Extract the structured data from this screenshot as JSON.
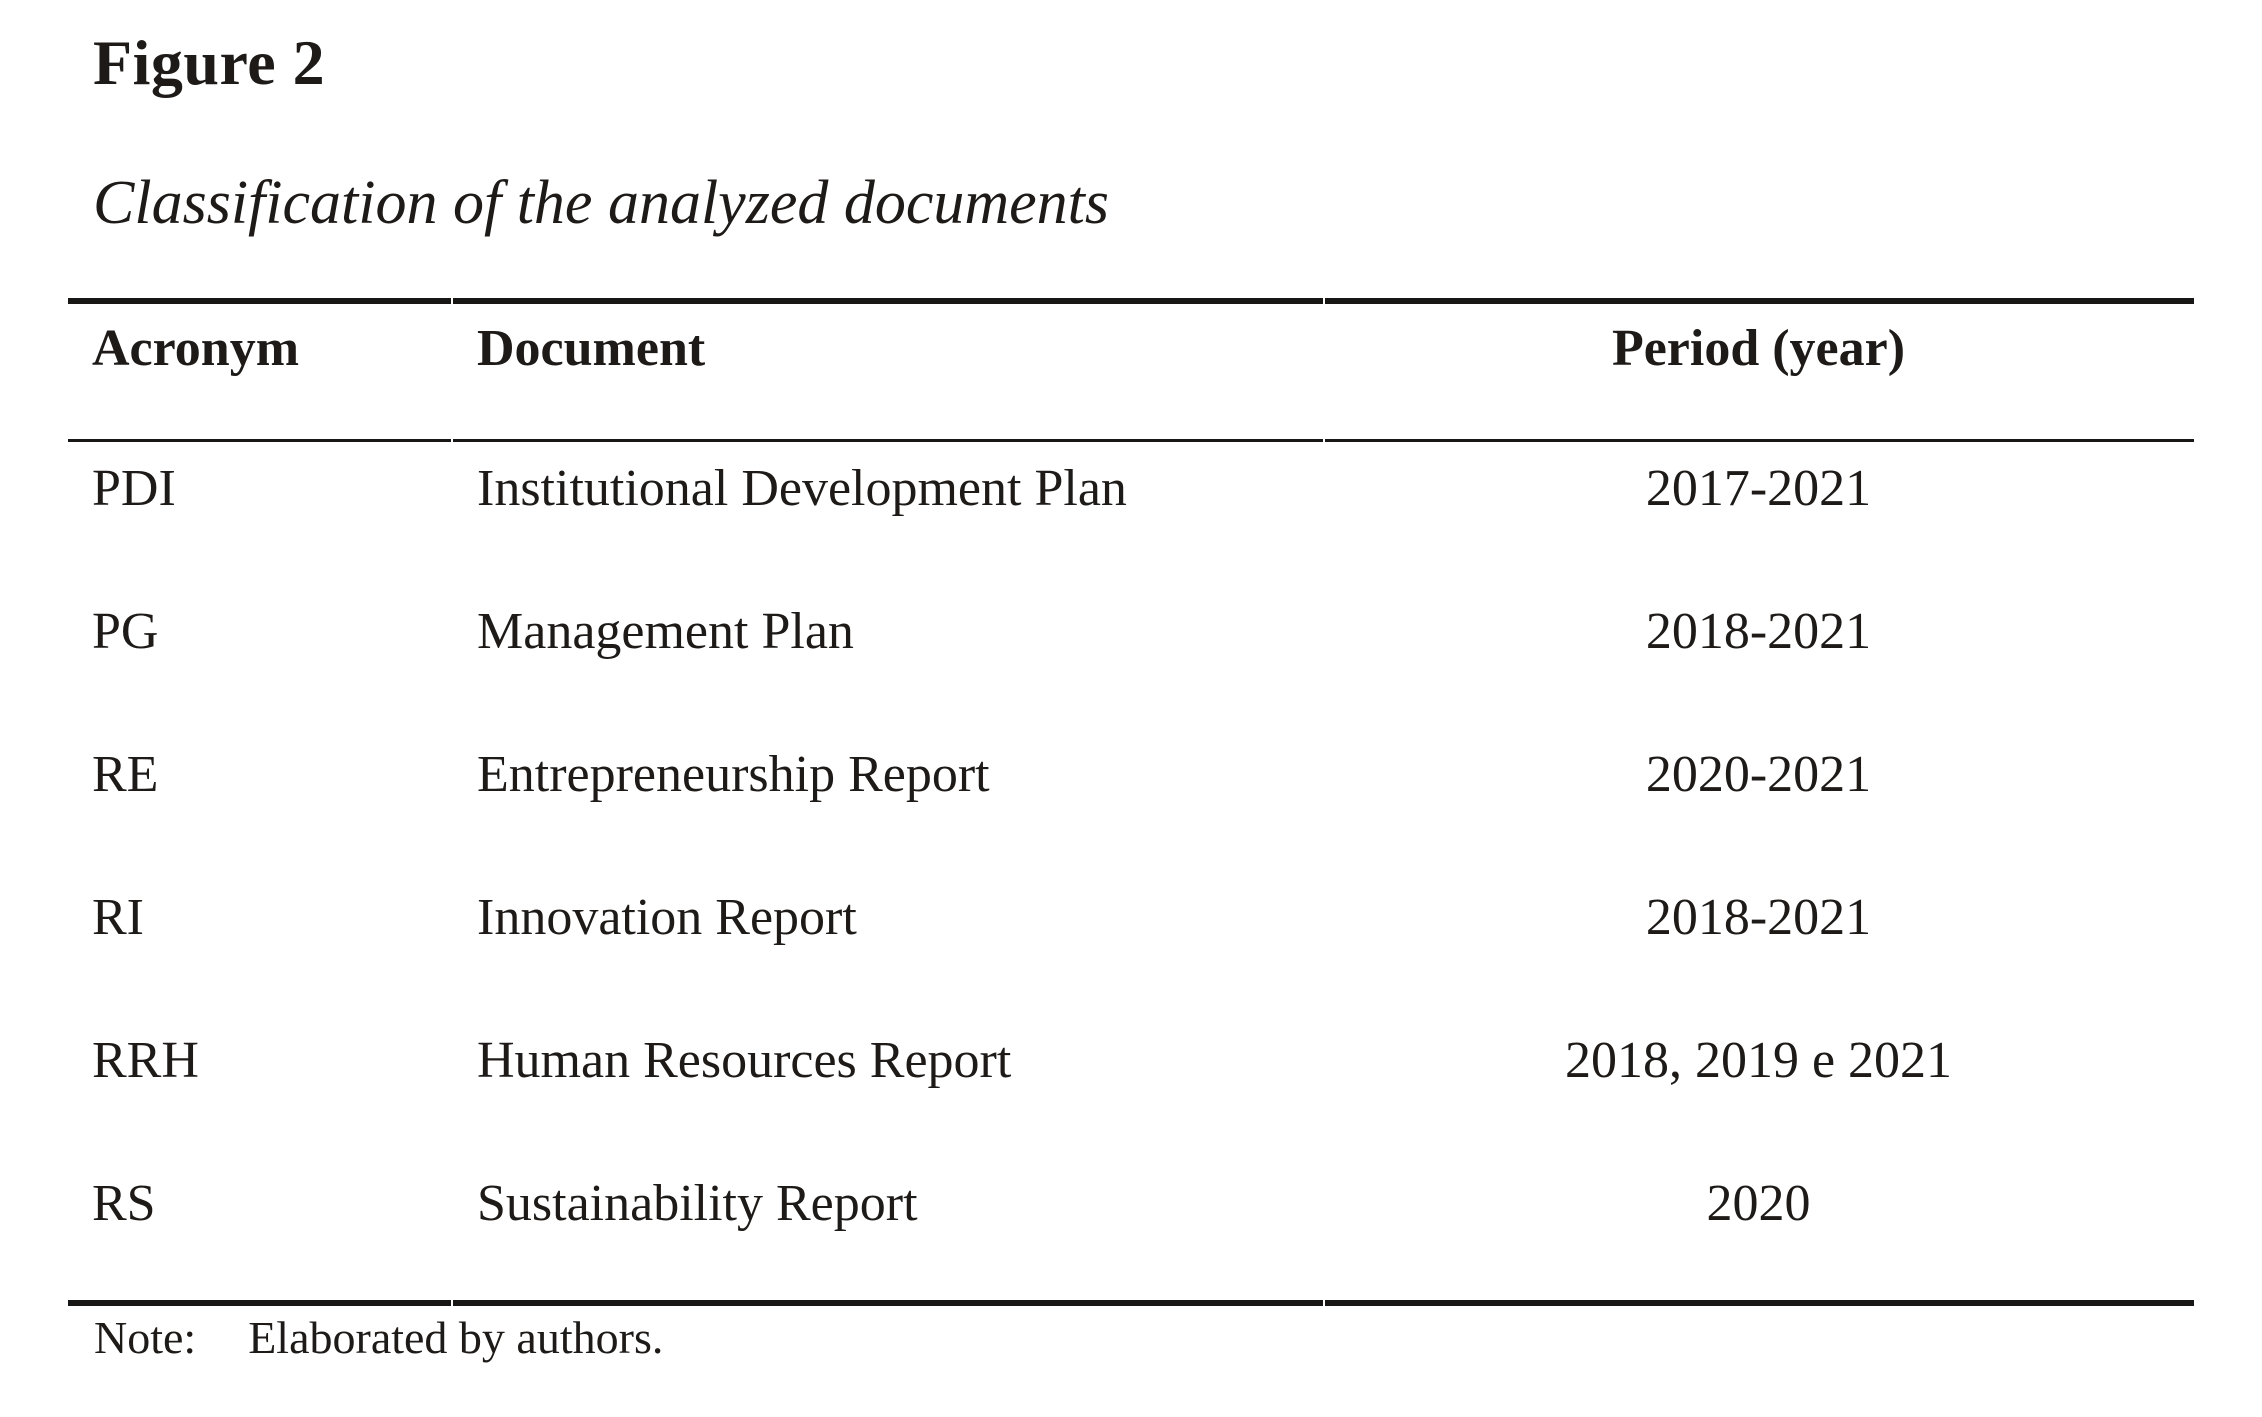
{
  "figure": {
    "label": "Figure 2",
    "caption": "Classification of the analyzed documents"
  },
  "table": {
    "columns": {
      "acronym": "Acronym",
      "document": "Document",
      "period": "Period (year)"
    },
    "rows": [
      {
        "acronym": "PDI",
        "document": "Institutional Development Plan",
        "period": "2017-2021"
      },
      {
        "acronym": "PG",
        "document": "Management Plan",
        "period": "2018-2021"
      },
      {
        "acronym": "RE",
        "document": "Entrepreneurship Report",
        "period": "2020-2021"
      },
      {
        "acronym": "RI",
        "document": "Innovation Report",
        "period": "2018-2021"
      },
      {
        "acronym": "RRH",
        "document": "Human Resources Report",
        "period": "2018, 2019 e 2021"
      },
      {
        "acronym": "RS",
        "document": "Sustainability Report",
        "period": "2020"
      }
    ]
  },
  "note": {
    "label": "Note:",
    "text": "Elaborated by authors."
  },
  "colors": {
    "text": "#1d1a18",
    "rule": "#191715",
    "background": "#ffffff"
  }
}
